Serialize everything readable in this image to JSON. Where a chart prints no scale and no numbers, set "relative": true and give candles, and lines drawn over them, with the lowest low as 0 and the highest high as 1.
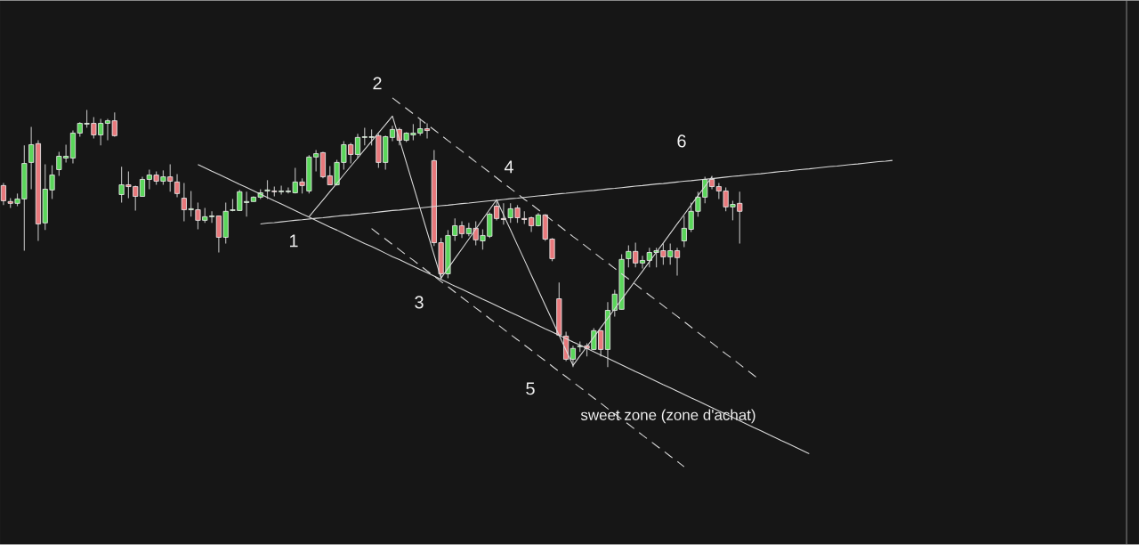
{
  "chart_data": {
    "type": "candlestick",
    "relative": true,
    "categories": [
      null,
      null,
      null,
      null,
      null,
      null,
      null,
      null,
      null,
      null,
      null,
      null,
      null,
      null,
      null,
      null,
      null,
      null,
      null,
      null,
      null,
      null,
      null,
      null,
      null,
      null,
      null,
      null,
      null,
      null,
      null,
      null,
      null,
      null,
      null,
      null,
      null,
      null,
      null,
      null,
      null,
      null,
      null,
      null,
      null,
      null,
      null,
      null,
      null,
      null,
      null,
      null,
      null,
      null,
      null,
      null,
      null,
      null,
      null,
      null,
      null,
      null,
      null,
      null,
      null,
      null,
      null,
      null,
      null,
      null,
      null,
      null,
      null,
      null,
      null,
      null,
      null,
      null,
      null,
      null,
      null,
      null,
      null,
      null,
      null,
      null,
      null,
      null,
      null,
      null,
      null,
      null,
      null,
      null,
      null,
      null,
      null,
      null,
      null,
      null,
      null,
      null,
      null,
      null,
      null,
      null,
      null,
      null,
      null,
      null,
      null,
      null,
      null,
      null,
      null,
      null,
      null,
      null,
      null,
      null,
      null,
      null,
      null,
      null,
      null,
      null,
      null,
      null,
      null
    ],
    "ohlc": [
      [
        0.706,
        0.716,
        0.63,
        0.647
      ],
      [
        0.644,
        0.657,
        0.619,
        0.637
      ],
      [
        0.637,
        0.675,
        0.626,
        0.654
      ],
      [
        0.654,
        0.862,
        0.453,
        0.792
      ],
      [
        0.796,
        0.934,
        0.692,
        0.865
      ],
      [
        0.869,
        0.882,
        0.491,
        0.557
      ],
      [
        0.561,
        0.789,
        0.533,
        0.692
      ],
      [
        0.689,
        0.785,
        0.654,
        0.747
      ],
      [
        0.768,
        0.837,
        0.744,
        0.82
      ],
      [
        0.813,
        0.865,
        0.796,
        0.82
      ],
      [
        0.813,
        0.92,
        0.792,
        0.91
      ],
      [
        0.91,
        0.952,
        0.896,
        0.948
      ],
      [
        0.945,
        1.0,
        0.931,
        0.948
      ],
      [
        0.948,
        0.972,
        0.889,
        0.903
      ],
      [
        0.903,
        0.965,
        0.862,
        0.948
      ],
      [
        0.948,
        0.965,
        0.882,
        0.958
      ],
      [
        0.958,
        0.99,
        0.896,
        0.9
      ],
      [
        0.671,
        0.779,
        0.64,
        0.709
      ],
      [
        0.709,
        0.761,
        0.657,
        0.702
      ],
      [
        0.702,
        0.706,
        0.609,
        0.664
      ],
      [
        0.664,
        0.74,
        0.664,
        0.73
      ],
      [
        0.73,
        0.768,
        0.692,
        0.747
      ],
      [
        0.747,
        0.761,
        0.709,
        0.723
      ],
      [
        0.723,
        0.765,
        0.709,
        0.74
      ],
      [
        0.74,
        0.789,
        0.682,
        0.723
      ],
      [
        0.72,
        0.751,
        0.661,
        0.675
      ],
      [
        0.657,
        0.716,
        0.567,
        0.612
      ],
      [
        0.612,
        0.685,
        0.585,
        0.616
      ],
      [
        0.612,
        0.64,
        0.536,
        0.571
      ],
      [
        0.571,
        0.619,
        0.561,
        0.585
      ],
      [
        0.585,
        0.606,
        0.561,
        0.588
      ],
      [
        0.588,
        0.588,
        0.446,
        0.505
      ],
      [
        0.505,
        0.64,
        0.481,
        0.606
      ],
      [
        0.609,
        0.654,
        0.606,
        0.612
      ],
      [
        0.609,
        0.689,
        0.609,
        0.682
      ],
      [
        0.64,
        0.682,
        0.585,
        0.644
      ],
      [
        0.644,
        0.664,
        0.644,
        0.661
      ],
      [
        0.661,
        0.692,
        0.654,
        0.678
      ],
      [
        0.685,
        0.727,
        0.654,
        0.689
      ],
      [
        0.685,
        0.702,
        0.664,
        0.682
      ],
      [
        0.682,
        0.706,
        0.671,
        0.685
      ],
      [
        0.682,
        0.699,
        0.675,
        0.685
      ],
      [
        0.678,
        0.775,
        0.675,
        0.72
      ],
      [
        0.72,
        0.734,
        0.675,
        0.706
      ],
      [
        0.685,
        0.824,
        0.675,
        0.817
      ],
      [
        0.817,
        0.844,
        0.761,
        0.83
      ],
      [
        0.834,
        0.837,
        0.734,
        0.74
      ],
      [
        0.744,
        0.782,
        0.709,
        0.709
      ],
      [
        0.709,
        0.806,
        0.706,
        0.796
      ],
      [
        0.796,
        0.879,
        0.768,
        0.865
      ],
      [
        0.865,
        0.872,
        0.792,
        0.827
      ],
      [
        0.827,
        0.907,
        0.813,
        0.893
      ],
      [
        0.893,
        0.931,
        0.862,
        0.896
      ],
      [
        0.893,
        0.924,
        0.862,
        0.896
      ],
      [
        0.9,
        0.907,
        0.775,
        0.796
      ],
      [
        0.796,
        0.9,
        0.768,
        0.896
      ],
      [
        0.893,
        0.938,
        0.879,
        0.924
      ],
      [
        0.924,
        0.931,
        0.862,
        0.882
      ],
      [
        0.882,
        0.913,
        0.875,
        0.91
      ],
      [
        0.903,
        0.945,
        0.882,
        0.91
      ],
      [
        0.91,
        0.965,
        0.9,
        0.927
      ],
      [
        0.927,
        0.948,
        0.889,
        0.92
      ],
      [
        0.803,
        0.844,
        0.471,
        0.484
      ],
      [
        0.484,
        0.502,
        0.343,
        0.363
      ],
      [
        0.363,
        0.533,
        0.346,
        0.512
      ],
      [
        0.512,
        0.578,
        0.491,
        0.55
      ],
      [
        0.55,
        0.567,
        0.502,
        0.519
      ],
      [
        0.519,
        0.561,
        0.509,
        0.54
      ],
      [
        0.54,
        0.567,
        0.474,
        0.495
      ],
      [
        0.491,
        0.536,
        0.457,
        0.512
      ],
      [
        0.509,
        0.602,
        0.502,
        0.595
      ],
      [
        0.626,
        0.647,
        0.571,
        0.578
      ],
      [
        0.578,
        0.637,
        0.554,
        0.574
      ],
      [
        0.581,
        0.637,
        0.561,
        0.616
      ],
      [
        0.619,
        0.63,
        0.561,
        0.581
      ],
      [
        0.578,
        0.606,
        0.557,
        0.574
      ],
      [
        0.581,
        0.585,
        0.526,
        0.55
      ],
      [
        0.55,
        0.599,
        0.547,
        0.592
      ],
      [
        0.592,
        0.595,
        0.491,
        0.498
      ],
      [
        0.498,
        0.502,
        0.412,
        0.422
      ],
      [
        0.266,
        0.329,
        0.121,
        0.125
      ],
      [
        0.121,
        0.138,
        0.024,
        0.031
      ],
      [
        0.031,
        0.083,
        0.0,
        0.073
      ],
      [
        0.08,
        0.1,
        0.059,
        0.083
      ],
      [
        0.083,
        0.093,
        0.042,
        0.073
      ],
      [
        0.069,
        0.152,
        0.066,
        0.142
      ],
      [
        0.142,
        0.145,
        0.042,
        0.069
      ],
      [
        0.069,
        0.253,
        0.0,
        0.221
      ],
      [
        0.221,
        0.301,
        0.197,
        0.284
      ],
      [
        0.225,
        0.439,
        0.225,
        0.419
      ],
      [
        0.422,
        0.474,
        0.388,
        0.45
      ],
      [
        0.45,
        0.484,
        0.388,
        0.405
      ],
      [
        0.405,
        0.433,
        0.384,
        0.415
      ],
      [
        0.415,
        0.464,
        0.388,
        0.446
      ],
      [
        0.446,
        0.464,
        0.388,
        0.453
      ],
      [
        0.453,
        0.481,
        0.398,
        0.429
      ],
      [
        0.429,
        0.481,
        0.398,
        0.453
      ],
      [
        0.453,
        0.464,
        0.356,
        0.426
      ],
      [
        0.491,
        0.588,
        0.467,
        0.54
      ],
      [
        0.536,
        0.64,
        0.526,
        0.606
      ],
      [
        0.606,
        0.682,
        0.585,
        0.661
      ],
      [
        0.661,
        0.74,
        0.637,
        0.73
      ],
      [
        0.73,
        0.744,
        0.692,
        0.702
      ],
      [
        0.702,
        0.716,
        0.654,
        0.685
      ],
      [
        0.685,
        0.699,
        0.606,
        0.623
      ],
      [
        0.623,
        0.647,
        0.571,
        0.633
      ],
      [
        0.637,
        0.682,
        0.481,
        0.606
      ],
      null,
      null,
      null,
      null,
      null,
      null,
      null,
      null,
      null,
      null,
      null,
      null,
      null,
      null,
      null,
      null,
      null,
      null,
      null,
      null,
      null,
      null
    ],
    "series": [
      {
        "type": "line",
        "color": "#d9d9d9",
        "values": [
          null,
          null,
          null,
          null,
          null,
          null,
          null,
          null,
          null,
          null,
          null,
          null,
          null,
          null,
          null,
          null,
          null,
          null,
          null,
          null,
          null,
          null,
          null,
          null,
          null,
          null,
          null,
          null,
          null,
          null,
          null,
          null,
          null,
          null,
          null,
          null,
          null,
          null,
          null,
          null,
          null,
          null,
          null,
          null,
          0.585,
          0.618,
          0.65,
          0.683,
          0.715,
          0.748,
          0.781,
          0.813,
          0.846,
          0.878,
          0.911,
          0.943,
          0.976,
          0.886,
          0.796,
          0.706,
          0.616,
          0.526,
          0.436,
          0.346,
          0.384,
          0.422,
          0.46,
          0.498,
          0.537,
          0.575,
          0.613,
          0.651,
          0.592,
          0.534,
          0.475,
          0.417,
          0.358,
          0.3,
          0.241,
          0.183,
          0.124,
          0.066,
          0.007,
          0.044,
          0.08,
          0.117,
          0.154,
          0.19,
          0.227,
          0.264,
          0.3,
          0.337,
          0.373,
          0.41,
          0.447,
          0.483,
          0.52,
          0.557,
          0.593,
          0.63,
          0.667,
          0.703,
          0.74,
          null,
          null,
          null,
          null,
          null,
          null,
          null,
          null,
          null,
          null,
          null,
          null,
          null,
          null,
          null,
          null,
          null,
          null,
          null,
          null,
          null,
          null,
          null,
          null,
          null,
          null
        ]
      },
      {
        "type": "line",
        "color": "#d9d9d9",
        "values": [
          null,
          null,
          null,
          null,
          null,
          null,
          null,
          null,
          null,
          null,
          null,
          null,
          null,
          null,
          null,
          null,
          null,
          null,
          null,
          null,
          null,
          null,
          null,
          null,
          null,
          null,
          null,
          null,
          null,
          null,
          null,
          null,
          null,
          null,
          null,
          null,
          null,
          0.557,
          0.56,
          0.562,
          0.565,
          0.568,
          0.571,
          0.573,
          0.576,
          0.579,
          0.581,
          0.584,
          0.587,
          0.59,
          0.592,
          0.595,
          0.598,
          0.6,
          0.603,
          0.606,
          0.609,
          0.611,
          0.614,
          0.617,
          0.619,
          0.622,
          0.625,
          0.628,
          0.63,
          0.633,
          0.636,
          0.638,
          0.641,
          0.644,
          0.647,
          0.649,
          0.652,
          0.655,
          0.657,
          0.66,
          0.663,
          0.666,
          0.668,
          0.671,
          0.674,
          0.676,
          0.679,
          0.682,
          0.685,
          0.687,
          0.69,
          0.693,
          0.695,
          0.698,
          0.701,
          0.704,
          0.706,
          0.709,
          0.712,
          0.714,
          0.717,
          0.72,
          0.723,
          0.725,
          0.728,
          0.731,
          0.733,
          0.736,
          0.739,
          0.742,
          0.744,
          0.747,
          0.75,
          0.752,
          0.755,
          0.758,
          0.761,
          0.763,
          0.766,
          0.769,
          0.771,
          0.774,
          0.777,
          0.78,
          0.782,
          0.785,
          0.788,
          0.79,
          0.793,
          0.796,
          0.799,
          0.801,
          0.804
        ]
      },
      {
        "type": "line",
        "color": "#d9d9d9",
        "values": [
          null,
          null,
          null,
          null,
          null,
          null,
          null,
          null,
          null,
          null,
          null,
          null,
          null,
          null,
          null,
          null,
          null,
          null,
          null,
          null,
          null,
          null,
          null,
          null,
          null,
          null,
          null,
          null,
          0.788,
          0.775,
          0.762,
          0.75,
          0.737,
          0.724,
          0.711,
          0.699,
          0.686,
          0.673,
          0.66,
          0.647,
          0.635,
          0.622,
          0.609,
          0.596,
          0.584,
          0.571,
          0.558,
          0.545,
          0.533,
          0.52,
          0.507,
          0.494,
          0.481,
          0.469,
          0.456,
          0.443,
          0.43,
          0.418,
          0.405,
          0.392,
          0.379,
          0.367,
          0.354,
          0.341,
          0.328,
          0.315,
          0.303,
          0.29,
          0.277,
          0.264,
          0.252,
          0.239,
          0.226,
          0.213,
          0.201,
          0.188,
          0.175,
          0.162,
          0.149,
          0.137,
          0.124,
          0.111,
          0.098,
          0.086,
          0.073,
          0.06,
          0.047,
          0.035,
          0.022,
          0.009,
          -0.004,
          -0.017,
          -0.029,
          -0.042,
          -0.055,
          -0.068,
          -0.08,
          -0.093,
          -0.106,
          -0.119,
          -0.131,
          -0.144,
          -0.157,
          -0.17,
          -0.182,
          -0.195,
          -0.208,
          -0.221,
          -0.234,
          -0.246,
          -0.259,
          -0.272,
          -0.285,
          -0.297,
          -0.31,
          -0.323,
          -0.336,
          null,
          null,
          null,
          null,
          null,
          null,
          null,
          null,
          null,
          null,
          null,
          null
        ]
      },
      {
        "type": "line",
        "color": "#d9d9d9",
        "line_style": "dashed",
        "values": [
          null,
          null,
          null,
          null,
          null,
          null,
          null,
          null,
          null,
          null,
          null,
          null,
          null,
          null,
          null,
          null,
          null,
          null,
          null,
          null,
          null,
          null,
          null,
          null,
          null,
          null,
          null,
          null,
          null,
          null,
          null,
          null,
          null,
          null,
          null,
          null,
          null,
          null,
          null,
          null,
          null,
          null,
          null,
          null,
          null,
          null,
          null,
          null,
          null,
          null,
          null,
          null,
          null,
          null,
          null,
          null,
          1.047,
          1.026,
          1.006,
          0.985,
          0.964,
          0.943,
          0.923,
          0.902,
          0.881,
          0.861,
          0.84,
          0.819,
          0.798,
          0.778,
          0.757,
          0.736,
          0.715,
          0.695,
          0.674,
          0.653,
          0.633,
          0.612,
          0.591,
          0.57,
          0.55,
          0.529,
          0.508,
          0.488,
          0.467,
          0.446,
          0.425,
          0.405,
          0.384,
          0.363,
          0.343,
          0.322,
          0.301,
          0.28,
          0.26,
          0.239,
          0.218,
          0.198,
          0.177,
          0.156,
          0.135,
          0.115,
          0.094,
          0.073,
          0.052,
          0.032,
          0.011,
          -0.01,
          -0.031,
          -0.051,
          null,
          null,
          null,
          null,
          null,
          null,
          null,
          null,
          null,
          null,
          null,
          null,
          null,
          null,
          null,
          null,
          null,
          null,
          null
        ]
      },
      {
        "type": "line",
        "color": "#d9d9d9",
        "line_style": "dashed",
        "values": [
          null,
          null,
          null,
          null,
          null,
          null,
          null,
          null,
          null,
          null,
          null,
          null,
          null,
          null,
          null,
          null,
          null,
          null,
          null,
          null,
          null,
          null,
          null,
          null,
          null,
          null,
          null,
          null,
          null,
          null,
          null,
          null,
          null,
          null,
          null,
          null,
          null,
          null,
          null,
          null,
          null,
          null,
          null,
          null,
          null,
          null,
          null,
          null,
          null,
          null,
          null,
          null,
          null,
          0.539,
          0.518,
          0.498,
          0.477,
          0.457,
          0.436,
          0.416,
          0.395,
          0.374,
          0.354,
          0.333,
          0.313,
          0.292,
          0.271,
          0.251,
          0.23,
          0.21,
          0.189,
          0.169,
          0.148,
          0.127,
          0.107,
          0.086,
          0.066,
          0.045,
          0.025,
          0.004,
          -0.017,
          -0.037,
          -0.058,
          -0.078,
          -0.099,
          -0.12,
          -0.14,
          -0.161,
          -0.181,
          -0.202,
          -0.222,
          -0.243,
          -0.264,
          -0.284,
          -0.305,
          -0.325,
          -0.346,
          -0.366,
          -0.387,
          null,
          null,
          null,
          null,
          null,
          null,
          null,
          null,
          null,
          null,
          null,
          null,
          null,
          null,
          null,
          null,
          null,
          null,
          null,
          null,
          null,
          null,
          null,
          null,
          null,
          null,
          null,
          null,
          null,
          null
        ]
      }
    ],
    "annotations": [
      "1",
      "2",
      "3",
      "4",
      "5",
      "6",
      "sweet zone (zone d'achat)"
    ]
  }
}
